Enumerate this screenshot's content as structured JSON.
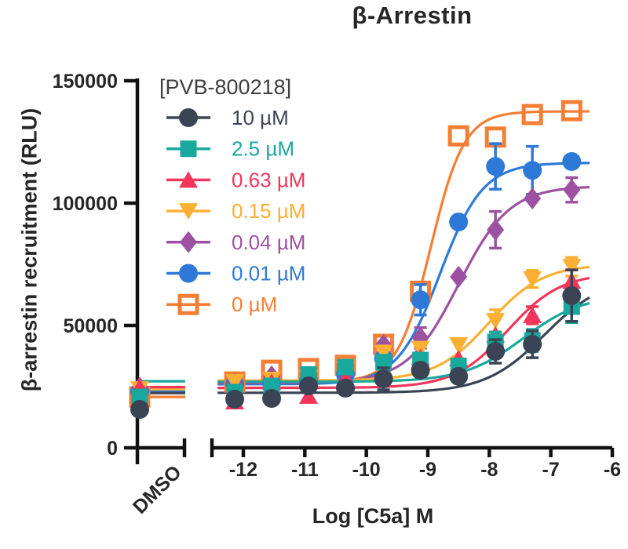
{
  "chart_data": {
    "type": "scatter",
    "title": "β-Arrestin",
    "xlabel": "Log [C5a] M",
    "ylabel": "β-arrestin recruitment (RLU)",
    "legend_title": "[PVB-800218]",
    "axis_color": "#111111",
    "text_color": "#262626",
    "legend_title_color": "#3E3E3E",
    "x_axis": {
      "ticks": [
        -12,
        -11,
        -10,
        -9,
        -8,
        -7,
        -6
      ],
      "tick_labels": [
        "-12",
        "-11",
        "-10",
        "-9",
        "-8",
        "-7",
        "-6"
      ],
      "range": [
        -12.45,
        -6
      ],
      "broken": true,
      "dmso_label": "DMSO"
    },
    "y_axis": {
      "ticks": [
        0,
        50000,
        100000,
        150000
      ],
      "tick_labels": [
        "0",
        "50000",
        "100000",
        "150000"
      ],
      "range": [
        0,
        150000
      ]
    },
    "x_log": [
      -12.14,
      -11.54,
      -10.94,
      -10.34,
      -9.72,
      -9.12,
      -8.5,
      -7.9,
      -7.3,
      -6.66
    ],
    "series": [
      {
        "label": "10 µM",
        "color": "#3B4454",
        "marker": "circle",
        "values": [
          19900,
          20200,
          25300,
          24400,
          28200,
          31700,
          29200,
          39400,
          42300,
          62200
        ],
        "err": [
          0,
          0,
          0,
          0,
          4500,
          0,
          0,
          4800,
          5500,
          10500
        ],
        "dmso": 15700,
        "dmso_line": 22400,
        "fit": {
          "bottom": 22500,
          "top": 70000,
          "logec50": -7.1,
          "hill": 0.9
        }
      },
      {
        "label": "2.5 µM",
        "color": "#18A89E",
        "marker": "square",
        "values": [
          22800,
          25300,
          30000,
          33000,
          35000,
          35900,
          33500,
          43300,
          43900,
          57700
        ],
        "err": [
          0,
          0,
          0,
          0,
          0,
          0,
          0,
          4000,
          4500,
          6500
        ],
        "dmso": 20800,
        "dmso_line": 27200,
        "fit": {
          "bottom": 27000,
          "top": 62500,
          "logec50": -7.45,
          "hill": 0.9
        }
      },
      {
        "label": "0.63 µM",
        "color": "#F2365B",
        "marker": "triangle-up",
        "values": [
          18900,
          26900,
          21200,
          28500,
          31000,
          37000,
          36500,
          46200,
          54200,
          68200
        ],
        "err": [
          0,
          0,
          0,
          0,
          0,
          0,
          0,
          0,
          3500,
          4500
        ],
        "dmso": 24800,
        "dmso_line": 24800,
        "fit": {
          "bottom": 24500,
          "top": 71500,
          "logec50": -7.7,
          "hill": 1.0
        }
      },
      {
        "label": "0.15 µM",
        "color": "#FBB033",
        "marker": "triangle-down",
        "values": [
          26900,
          27900,
          28500,
          32000,
          39000,
          40500,
          42000,
          51900,
          69000,
          74000
        ],
        "err": [
          0,
          0,
          0,
          0,
          0,
          0,
          0,
          4500,
          3500,
          3800
        ],
        "dmso": 24000,
        "dmso_line": 24000,
        "fit": {
          "bottom": 27500,
          "top": 75000,
          "logec50": -8.0,
          "hill": 1.0
        }
      },
      {
        "label": "0.04 µM",
        "color": "#9C51A1",
        "marker": "diamond",
        "values": [
          26000,
          29200,
          27000,
          30500,
          42000,
          44900,
          69900,
          89100,
          101900,
          105400
        ],
        "err": [
          0,
          0,
          0,
          0,
          0,
          4200,
          0,
          7500,
          0,
          5000
        ],
        "dmso": 24500,
        "dmso_line": 24500,
        "fit": {
          "bottom": 26500,
          "top": 107000,
          "logec50": -8.5,
          "hill": 1.05
        }
      },
      {
        "label": "0.01 µM",
        "color": "#2E79D8",
        "marker": "circle",
        "values": [
          26000,
          26500,
          27500,
          30000,
          36500,
          60500,
          92300,
          115000,
          113400,
          117000
        ],
        "err": [
          0,
          0,
          0,
          0,
          0,
          6200,
          0,
          9300,
          9800,
          0
        ],
        "dmso": 23000,
        "dmso_line": 23000,
        "fit": {
          "bottom": 26000,
          "top": 116500,
          "logec50": -8.8,
          "hill": 1.25
        }
      },
      {
        "label": "0 µM",
        "color": "#F57E35",
        "marker": "open-square",
        "values": [
          26900,
          31700,
          32400,
          33700,
          42300,
          64000,
          127500,
          127000,
          136200,
          137800
        ],
        "err": [
          0,
          0,
          0,
          0,
          0,
          0,
          0,
          0,
          0,
          0
        ],
        "dmso": 20800,
        "dmso_line": 20800,
        "fit": {
          "bottom": 27000,
          "top": 137500,
          "logec50": -8.95,
          "hill": 1.6
        }
      }
    ]
  }
}
